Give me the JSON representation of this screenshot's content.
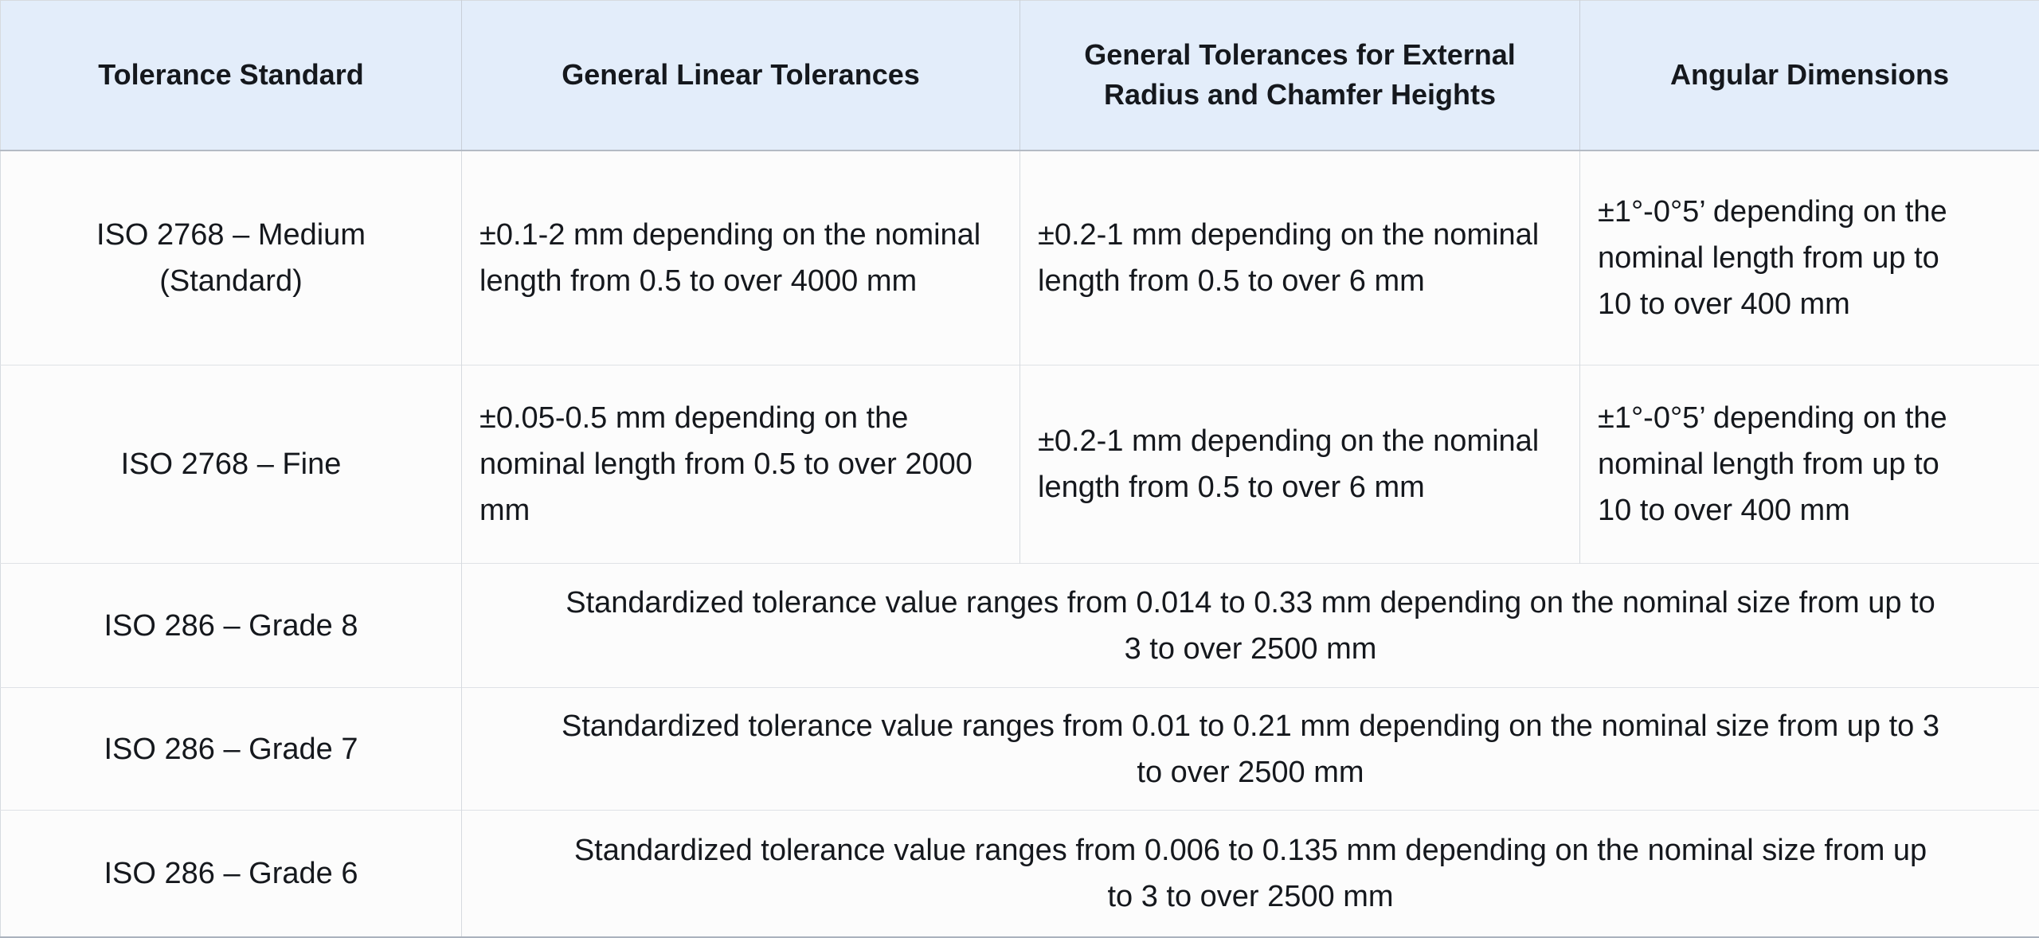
{
  "colors": {
    "header_bg": "#e3edfa",
    "row_bg": "#fcfcfc",
    "vertical_grid_line": "#d6dadf",
    "row_separator_line": "#dfe2e6",
    "header_bottom_border": "#b4bbc4",
    "table_bottom_border": "#aab2bd",
    "text": "#15181d"
  },
  "table": {
    "headers": [
      "Tolerance Standard",
      "General Linear Tolerances",
      "General Tolerances for External Radius and Chamfer Heights",
      "Angular Dimensions"
    ],
    "rows": [
      {
        "standard": "ISO 2768 – Medium (Standard)",
        "linear": "±0.1-2 mm depending on the nominal length from 0.5 to over 4000 mm",
        "radius_chamfer": "±0.2-1 mm depending on the nominal length from 0.5 to over 6 mm",
        "angular": "±1°-0°5’ depending on the nominal length from up to 10 to over 400 mm"
      },
      {
        "standard": "ISO 2768 – Fine",
        "linear": "±0.05-0.5 mm depending on the nominal length from 0.5 to over 2000 mm",
        "radius_chamfer": "±0.2-1 mm depending on the nominal length from 0.5 to over 6 mm",
        "angular": "±1°-0°5’ depending on the nominal length from up to 10 to over 400 mm"
      },
      {
        "standard": "ISO 286 – Grade 8",
        "merged": "Standardized tolerance value ranges from 0.014 to 0.33 mm depending on the nominal size from up to 3 to over 2500 mm"
      },
      {
        "standard": "ISO 286 – Grade 7",
        "merged": "Standardized tolerance value ranges from 0.01 to 0.21 mm depending on the nominal size from up to 3 to over 2500 mm"
      },
      {
        "standard": "ISO 286 – Grade 6",
        "merged": "Standardized tolerance value ranges from 0.006 to 0.135 mm depending on the nominal size from up to 3 to over 2500 mm"
      }
    ]
  }
}
